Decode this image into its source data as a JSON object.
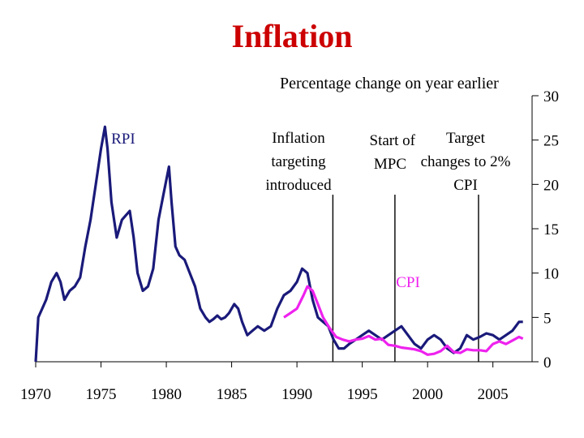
{
  "chart_data": {
    "type": "line",
    "title": "Inflation",
    "subtitle": "Percentage change on year earlier",
    "xlim": [
      1970,
      2008
    ],
    "ylim": [
      0,
      30
    ],
    "y_axis_position": "right",
    "grid": false,
    "x_ticks": [
      "1970",
      "1975",
      "1980",
      "1985",
      "1990",
      "1995",
      "2000",
      "2005"
    ],
    "y_ticks": [
      "0",
      "5",
      "10",
      "15",
      "20",
      "25",
      "30"
    ],
    "series": [
      {
        "name": "RPI",
        "color": "#1a1a7a",
        "x": [
          1970.0,
          1970.2,
          1970.5,
          1970.8,
          1971.2,
          1971.6,
          1971.9,
          1972.2,
          1972.6,
          1973.0,
          1973.4,
          1973.8,
          1974.2,
          1974.6,
          1975.0,
          1975.3,
          1975.5,
          1975.8,
          1976.2,
          1976.6,
          1976.9,
          1977.2,
          1977.5,
          1977.8,
          1978.2,
          1978.6,
          1979.0,
          1979.4,
          1979.8,
          1980.2,
          1980.4,
          1980.7,
          1981.0,
          1981.4,
          1981.8,
          1982.2,
          1982.6,
          1983.0,
          1983.3,
          1983.6,
          1983.9,
          1984.2,
          1984.5,
          1984.8,
          1985.2,
          1985.5,
          1985.8,
          1986.2,
          1986.6,
          1987.0,
          1987.5,
          1988.0,
          1988.5,
          1989.0,
          1989.5,
          1990.0,
          1990.4,
          1990.8,
          1991.2,
          1991.6,
          1992.0,
          1992.4,
          1992.8,
          1993.2,
          1993.6,
          1994.0,
          1994.5,
          1995.0,
          1995.5,
          1996.0,
          1996.5,
          1997.0,
          1997.5,
          1998.0,
          1998.5,
          1999.0,
          1999.5,
          2000.0,
          2000.5,
          2001.0,
          2001.5,
          2002.0,
          2002.5,
          2003.0,
          2003.5,
          2004.0,
          2004.5,
          2005.0,
          2005.5,
          2006.0,
          2006.5,
          2007.0,
          2007.3
        ],
        "values": [
          0,
          5,
          6,
          7,
          9,
          10,
          9,
          7,
          8,
          8.5,
          9.5,
          13,
          16,
          20,
          24,
          26.5,
          24,
          18,
          14,
          16,
          16.5,
          17,
          14,
          10,
          8,
          8.5,
          10.5,
          16,
          19,
          22,
          18,
          13,
          12,
          11.5,
          10,
          8.5,
          6,
          5,
          4.5,
          4.8,
          5.2,
          4.8,
          5.0,
          5.5,
          6.5,
          6.0,
          4.5,
          3.0,
          3.5,
          4.0,
          3.5,
          4.0,
          6.0,
          7.5,
          8.0,
          9.0,
          10.5,
          10.0,
          7.0,
          5.0,
          4.5,
          4.0,
          2.5,
          1.5,
          1.5,
          2.0,
          2.5,
          3.0,
          3.5,
          3.0,
          2.5,
          3.0,
          3.5,
          4.0,
          3.0,
          2.0,
          1.5,
          2.5,
          3.0,
          2.5,
          1.5,
          1.0,
          1.5,
          3.0,
          2.5,
          2.8,
          3.2,
          3.0,
          2.5,
          3.0,
          3.5,
          4.5,
          4.5
        ]
      },
      {
        "name": "CPI",
        "color": "#ee22ee",
        "x": [
          1989.0,
          1989.5,
          1990.0,
          1990.5,
          1990.8,
          1991.2,
          1991.6,
          1992.0,
          1992.5,
          1993.0,
          1993.5,
          1994.0,
          1994.5,
          1995.0,
          1995.5,
          1996.0,
          1996.5,
          1997.0,
          1997.5,
          1998.0,
          1998.5,
          1999.0,
          1999.5,
          2000.0,
          2000.5,
          2001.0,
          2001.5,
          2002.0,
          2002.5,
          2003.0,
          2003.5,
          2004.0,
          2004.5,
          2005.0,
          2005.5,
          2006.0,
          2006.5,
          2007.0,
          2007.3
        ],
        "values": [
          5.0,
          5.5,
          6.0,
          7.5,
          8.5,
          8.0,
          6.5,
          5.0,
          3.8,
          2.8,
          2.5,
          2.3,
          2.5,
          2.6,
          2.9,
          2.5,
          2.6,
          1.9,
          1.8,
          1.6,
          1.5,
          1.4,
          1.2,
          0.8,
          0.9,
          1.2,
          1.8,
          1.1,
          1.0,
          1.4,
          1.3,
          1.3,
          1.2,
          2.0,
          2.3,
          2.0,
          2.4,
          2.8,
          2.6
        ]
      }
    ],
    "vertical_markers": [
      {
        "x": 1992.75,
        "label_lines": [
          "Inflation",
          "targeting",
          "introduced"
        ]
      },
      {
        "x": 1997.5,
        "label_lines": [
          "Start of",
          "MPC"
        ]
      },
      {
        "x": 2003.9,
        "label_lines": [
          "Target",
          "changes to 2%",
          "CPI"
        ]
      }
    ],
    "annotations": [
      {
        "text": "RPI",
        "color": "#1a1a7a",
        "x": 1976.7,
        "y": 24.6
      },
      {
        "text": "CPI",
        "color": "#ee22ee",
        "x": 1998.5,
        "y": 8.4
      }
    ]
  }
}
